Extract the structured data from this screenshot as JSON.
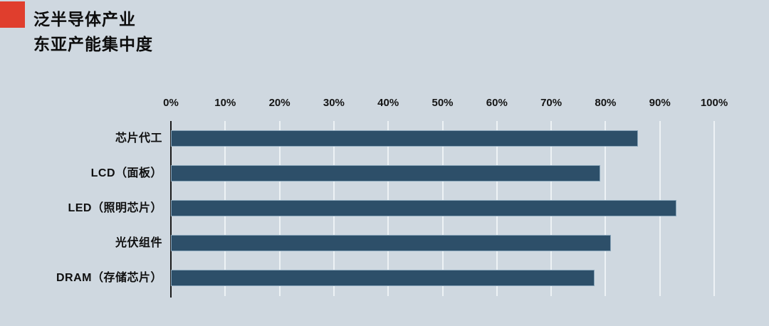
{
  "header": {
    "title_line1": "泛半导体产业",
    "title_line2": "东亚产能集中度",
    "accent_color": "#e03e2d"
  },
  "chart_data": {
    "type": "bar",
    "orientation": "horizontal",
    "title": "泛半导体产业 东亚产能集中度",
    "categories": [
      "芯片代工",
      "LCD（面板）",
      "LED（照明芯片）",
      "光伏组件",
      "DRAM（存储芯片）"
    ],
    "values": [
      86,
      79,
      93,
      81,
      78
    ],
    "unit": "%",
    "x_ticks": [
      "0%",
      "10%",
      "20%",
      "30%",
      "40%",
      "50%",
      "60%",
      "70%",
      "80%",
      "90%",
      "100%"
    ],
    "xlim": [
      0,
      100
    ],
    "grid": true,
    "legend": "none",
    "colors": {
      "bar": "#2d4f69",
      "bar_border": "#8aa6ba",
      "background": "#cfd8e0",
      "gridline": "#edf2f5",
      "axis_line": "#1b1b1b"
    }
  }
}
